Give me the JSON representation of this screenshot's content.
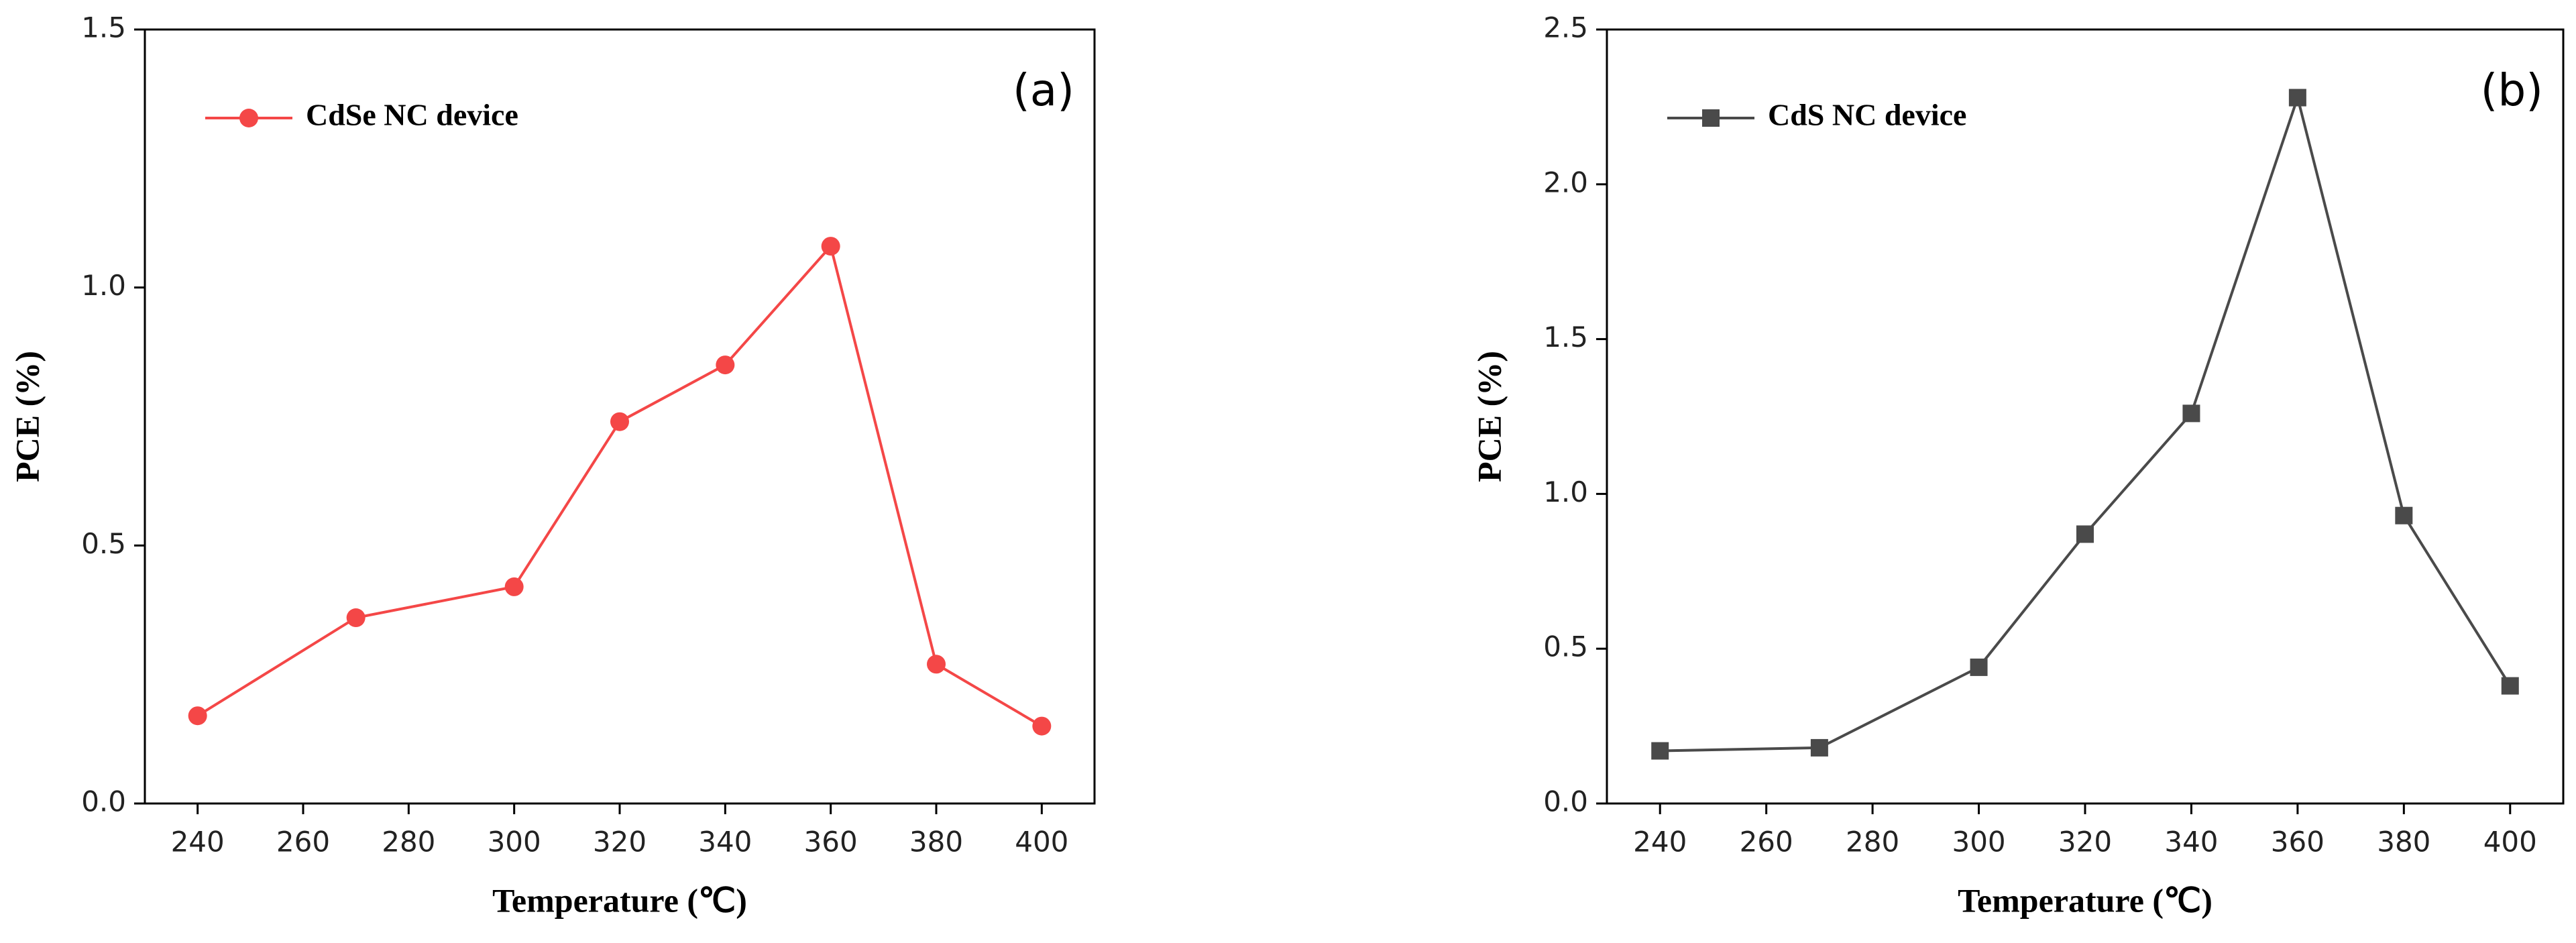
{
  "chart_data": [
    {
      "type": "line",
      "panel_label": "(a)",
      "xlabel": "Temperature (℃)",
      "ylabel": "PCE (%)",
      "x": [
        240,
        270,
        300,
        320,
        340,
        360,
        380,
        400
      ],
      "series": [
        {
          "name": "CdSe NC device",
          "color": "#f44747",
          "marker": "circle",
          "values": [
            0.17,
            0.36,
            0.42,
            0.74,
            0.85,
            1.08,
            0.27,
            0.15
          ]
        }
      ],
      "xlim": [
        230,
        410
      ],
      "xticks": [
        240,
        260,
        280,
        300,
        320,
        340,
        360,
        380,
        400
      ],
      "ylim": [
        0,
        1.5
      ],
      "yticks": [
        {
          "value": 0,
          "label": "0.0"
        },
        0.5,
        {
          "value": 1,
          "label": "1.0"
        },
        1.5
      ],
      "legend": "upper left"
    },
    {
      "type": "line",
      "panel_label": "(b)",
      "xlabel": "Temperature (℃)",
      "ylabel": "PCE (%)",
      "x": [
        240,
        270,
        300,
        320,
        340,
        360,
        380,
        400
      ],
      "series": [
        {
          "name": "CdS NC device",
          "color": "#4a4a4a",
          "marker": "square",
          "values": [
            0.17,
            0.18,
            0.44,
            0.87,
            1.26,
            2.28,
            0.93,
            0.38
          ]
        }
      ],
      "xlim": [
        230,
        410
      ],
      "xticks": [
        240,
        260,
        280,
        300,
        320,
        340,
        360,
        380,
        400
      ],
      "ylim": [
        0,
        2.5
      ],
      "yticks": [
        {
          "value": 0,
          "label": "0.0"
        },
        0.5,
        {
          "value": 1,
          "label": "1.0"
        },
        1.5,
        {
          "value": 2,
          "label": "2.0"
        },
        2.5
      ],
      "legend": "upper left"
    }
  ]
}
